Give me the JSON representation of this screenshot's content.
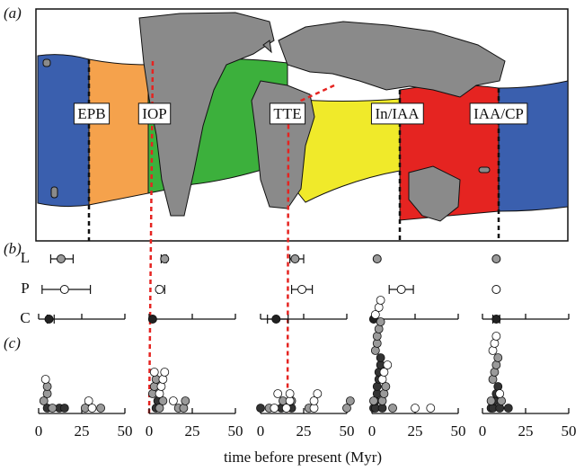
{
  "panel_labels": [
    "(a)",
    "(b)",
    "(c)"
  ],
  "map": {
    "regions": [
      "EPB",
      "IOP",
      "TTE",
      "In/IAA",
      "IAA/CP"
    ]
  },
  "chart_data": {
    "type": "dotplot",
    "x_label": "time before present (Myr)",
    "xlim": [
      0,
      50
    ],
    "xticks": [
      0,
      25,
      50
    ],
    "rows": [
      "L",
      "P",
      "C"
    ],
    "row_colors": [
      "#9a9a9a",
      "#ffffff",
      "#222222"
    ],
    "panels": [
      {
        "estimates": {
          "values": [
            13,
            15,
            6
          ],
          "lower": [
            7,
            2,
            5
          ],
          "upper": [
            20,
            30,
            9
          ]
        },
        "points": [
          {
            "color": "#333333",
            "values": [
              5,
              12,
              15
            ]
          },
          {
            "color": "#9a9a9a",
            "values": [
              3,
              5,
              5,
              8,
              27,
              36
            ]
          },
          {
            "color": "#ffffff",
            "values": [
              4,
              29,
              31
            ]
          }
        ]
      },
      {
        "estimates": {
          "values": [
            9,
            6,
            2
          ],
          "lower": [
            7,
            5,
            null
          ],
          "upper": [
            10,
            9,
            null
          ]
        },
        "points": [
          {
            "color": "#333333",
            "values": [
              4,
              5
            ]
          },
          {
            "color": "#9a9a9a",
            "values": [
              2,
              3,
              4,
              6,
              8,
              17,
              20,
              21
            ]
          },
          {
            "color": "#ffffff",
            "values": [
              3,
              6,
              7,
              8,
              9,
              14
            ]
          }
        ]
      },
      {
        "estimates": {
          "values": [
            20,
            24,
            9
          ],
          "lower": [
            17,
            18,
            4
          ],
          "upper": [
            25,
            30,
            16
          ]
        },
        "points": [
          {
            "color": "#333333",
            "values": [
              0,
              12,
              18
            ]
          },
          {
            "color": "#9a9a9a",
            "values": [
              5,
              13,
              18,
              28,
              50,
              52
            ]
          },
          {
            "color": "#ffffff",
            "values": [
              8,
              10,
              15,
              17,
              17,
              31,
              31,
              33
            ]
          }
        ]
      },
      {
        "estimates": {
          "values": [
            3,
            17,
            1
          ],
          "lower": [
            null,
            10,
            null
          ],
          "upper": [
            null,
            24,
            null
          ]
        },
        "points": [
          {
            "color": "#333333",
            "values": [
              1,
              2,
              2,
              3,
              3,
              4,
              4,
              5,
              5,
              6
            ]
          },
          {
            "color": "#9a9a9a",
            "values": [
              1,
              2,
              3,
              3,
              4,
              5,
              6,
              7,
              8,
              12
            ]
          },
          {
            "color": "#ffffff",
            "values": [
              2,
              4,
              5,
              6,
              7,
              9,
              25,
              34
            ]
          }
        ]
      },
      {
        "estimates": {
          "values": [
            8,
            8,
            8
          ],
          "lower": [
            null,
            null,
            6
          ],
          "upper": [
            null,
            null,
            10
          ]
        },
        "points": [
          {
            "color": "#333333",
            "values": [
              5,
              6,
              7,
              8,
              9,
              10,
              15
            ]
          },
          {
            "color": "#9a9a9a",
            "values": [
              5,
              6,
              7,
              8,
              9,
              11
            ]
          },
          {
            "color": "#ffffff",
            "values": [
              6,
              7,
              8,
              10
            ]
          }
        ]
      }
    ]
  }
}
